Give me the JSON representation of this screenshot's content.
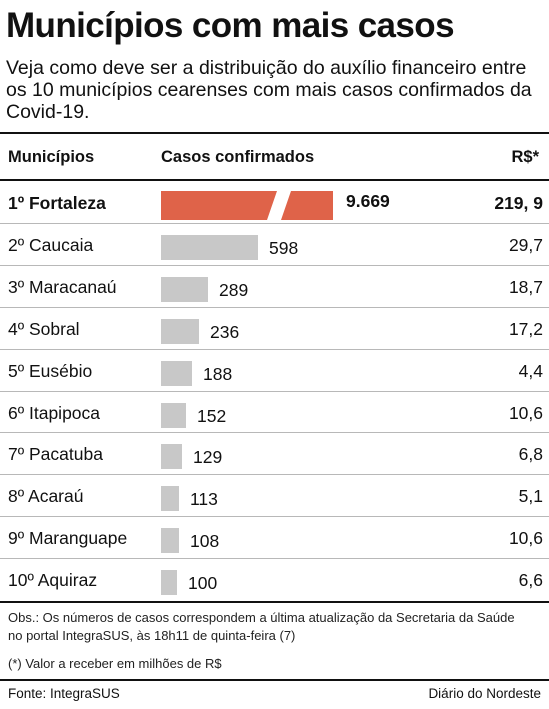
{
  "title": "Municípios com mais casos",
  "subtitle": "Veja como deve ser a distribuição do auxílio financeiro entre os 10 municípios cearenses com mais casos confirmados da Covid-19.",
  "headers": {
    "municipios": "Municípios",
    "casos": "Casos confirmados",
    "valor": "R$*"
  },
  "rows": [
    {
      "label": "1º Fortaleza",
      "value_label": "9.669",
      "amount": "219, 9"
    },
    {
      "label": "2º Caucaia",
      "value_label": "598",
      "amount": "29,7"
    },
    {
      "label": "3º Maracanaú",
      "value_label": "289",
      "amount": "18,7"
    },
    {
      "label": "4º Sobral",
      "value_label": "236",
      "amount": "17,2"
    },
    {
      "label": "5º Eusébio",
      "value_label": "188",
      "amount": "4,4"
    },
    {
      "label": "6º Itapipoca",
      "value_label": "152",
      "amount": "10,6"
    },
    {
      "label": "7º Pacatuba",
      "value_label": "129",
      "amount": "6,8"
    },
    {
      "label": "8º Acaraú",
      "value_label": "113",
      "amount": "5,1"
    },
    {
      "label": "9º Maranguape",
      "value_label": "108",
      "amount": "10,6"
    },
    {
      "label": "10º Aquiraz",
      "value_label": "100",
      "amount": "6,6"
    }
  ],
  "notes": {
    "obs": "Obs.: Os números de casos correspondem a última atualização da Secretaria da Saúde no portal IntegraSUS, às 18h11 de quinta-feira (7)",
    "asterisk": "(*) Valor a receber em milhões de R$"
  },
  "footer": {
    "source": "Fonte: IntegraSUS",
    "publisher": "Diário do Nordeste"
  },
  "colors": {
    "highlight_bar": "#df6349",
    "bar": "#c8c8c8"
  },
  "chart_data": {
    "type": "bar",
    "orientation": "horizontal",
    "axis_break": "first bar truncated",
    "categories": [
      "1º Fortaleza",
      "2º Caucaia",
      "3º Maracanaú",
      "4º Sobral",
      "5º Eusébio",
      "6º Itapipoca",
      "7º Pacatuba",
      "8º Acaraú",
      "9º Maranguape",
      "10º Aquiraz"
    ],
    "series": [
      {
        "name": "Casos confirmados",
        "values": [
          9669,
          598,
          289,
          236,
          188,
          152,
          129,
          113,
          108,
          100
        ]
      },
      {
        "name": "R$*",
        "values": [
          219.9,
          29.7,
          18.7,
          17.2,
          4.4,
          10.6,
          6.8,
          5.1,
          10.6,
          6.6
        ]
      }
    ]
  }
}
